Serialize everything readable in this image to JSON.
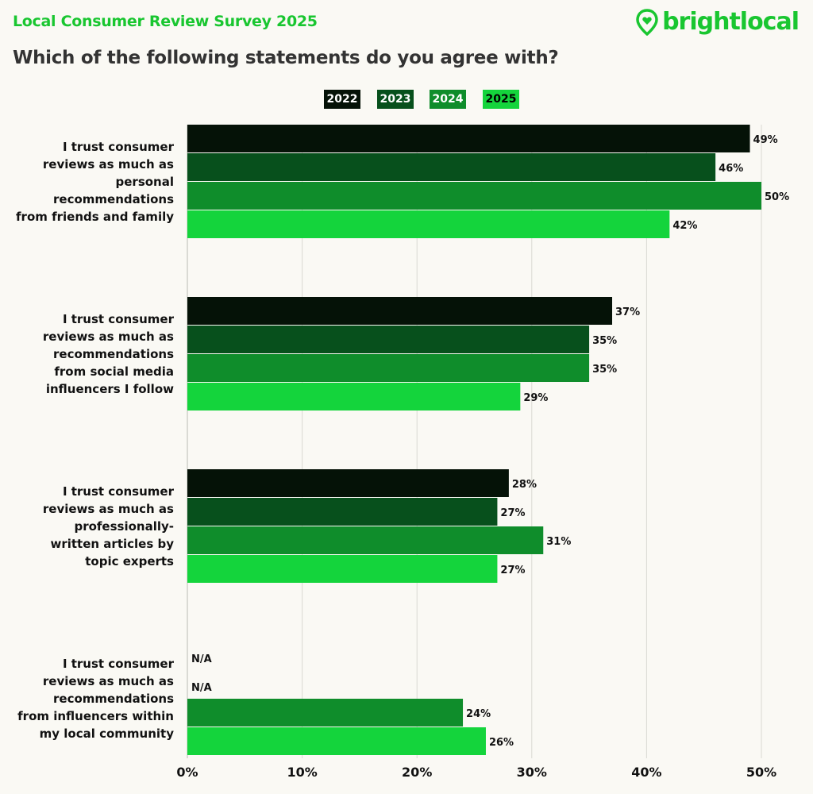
{
  "header": {
    "survey_title": "Local Consumer Review Survey 2025",
    "brand_name": "brightlocal",
    "question": "Which of the following statements do you agree with?"
  },
  "colors": {
    "2022": "#051207",
    "2023": "#07501c",
    "2024": "#0f8d2b",
    "2025": "#14d43c",
    "brand": "#19c630",
    "grid": "#d9d9d2",
    "background": "#faf9f4"
  },
  "chart_data": {
    "type": "bar",
    "orientation": "horizontal",
    "title": "Which of the following statements do you agree with?",
    "xlabel": "",
    "ylabel": "",
    "xlim": [
      0,
      50
    ],
    "x_ticks": [
      "0%",
      "10%",
      "20%",
      "30%",
      "40%",
      "50%"
    ],
    "grid": true,
    "legend_position": "top-center",
    "categories": [
      [
        "I trust consumer",
        "reviews as much as",
        "personal",
        "recommendations",
        "from friends and family"
      ],
      [
        "I trust consumer",
        "reviews as much as",
        "recommendations",
        "from social media",
        "influencers I follow"
      ],
      [
        "I trust consumer",
        "reviews as much as",
        "professionally-",
        "written articles by",
        "topic experts"
      ],
      [
        "I trust consumer",
        "reviews as much as",
        "recommendations",
        "from influencers within",
        "my local community"
      ]
    ],
    "series": [
      {
        "name": "2022",
        "values": [
          49,
          37,
          28,
          null
        ],
        "labels": [
          "49%",
          "37%",
          "28%",
          "N/A"
        ]
      },
      {
        "name": "2023",
        "values": [
          46,
          35,
          27,
          null
        ],
        "labels": [
          "46%",
          "35%",
          "27%",
          "N/A"
        ]
      },
      {
        "name": "2024",
        "values": [
          50,
          35,
          31,
          24
        ],
        "labels": [
          "50%",
          "35%",
          "31%",
          "24%"
        ]
      },
      {
        "name": "2025",
        "values": [
          42,
          29,
          27,
          26
        ],
        "labels": [
          "42%",
          "29%",
          "27%",
          "26%"
        ]
      }
    ]
  }
}
